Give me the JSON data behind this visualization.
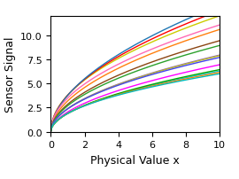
{
  "title": "",
  "xlabel": "Physical Value x",
  "ylabel": "Sensor Signal",
  "xlim": [
    0,
    10
  ],
  "ylim": [
    0,
    12
  ],
  "x_start": 0.001,
  "x_end": 10.0,
  "n_points": 300,
  "curves": [
    {
      "color": "#cccc00",
      "a": 3.8,
      "b": 0.5
    },
    {
      "color": "#ff0000",
      "a": 3.79,
      "b": 0.52
    },
    {
      "color": "#1f77b4",
      "a": 3.78,
      "b": 0.54
    },
    {
      "color": "#ff7f0e",
      "a": 3.2,
      "b": 0.52
    },
    {
      "color": "#ff69b4",
      "a": 3.5,
      "b": 0.5
    },
    {
      "color": "#8B4513",
      "a": 2.85,
      "b": 0.52
    },
    {
      "color": "#9467bd",
      "a": 2.4,
      "b": 0.52
    },
    {
      "color": "#ff00ff",
      "a": 2.05,
      "b": 0.53
    },
    {
      "color": "#2ca02c",
      "a": 2.7,
      "b": 0.52
    },
    {
      "color": "#bcbd22",
      "a": 2.38,
      "b": 0.52
    },
    {
      "color": "#4444ee",
      "a": 2.38,
      "b": 0.51
    },
    {
      "color": "#17becf",
      "a": 1.9,
      "b": 0.52
    },
    {
      "color": "#00aa00",
      "a": 1.9,
      "b": 0.53
    },
    {
      "color": "#ff8800",
      "a": 1.9,
      "b": 0.51
    },
    {
      "color": "#00bbbb",
      "a": 1.9,
      "b": 0.5
    }
  ],
  "figsize": [
    2.7,
    2.03
  ],
  "dpi": 100,
  "xlabel_fontsize": 9,
  "ylabel_fontsize": 9,
  "tick_fontsize": 8
}
